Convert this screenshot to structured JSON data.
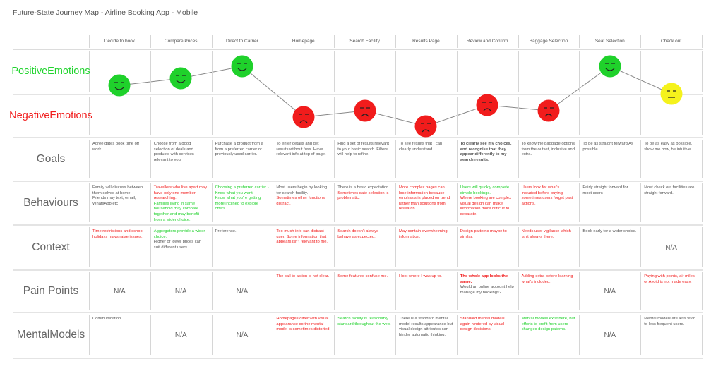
{
  "title": "Future-State Journey Map - Airline Booking App - Mobile",
  "columns": [
    "Decide to book",
    "Compare Prices",
    "Direct to Carrier",
    "Homepage",
    "Search Facility",
    "Results Page",
    "Review and Confirm",
    "Baggage Selection",
    "Seat Selection",
    "Check out"
  ],
  "emotion_rows": {
    "positive_label": [
      "Positive",
      "Emotions"
    ],
    "negative_label": [
      "Negative",
      "Emotions"
    ]
  },
  "emotions": [
    {
      "stage": "Decide to book",
      "sentiment": "positive",
      "face": "smile",
      "color": "#1fd12b",
      "level": 0.7
    },
    {
      "stage": "Compare Prices",
      "sentiment": "positive",
      "face": "smile",
      "color": "#1fd12b",
      "level": 0.8
    },
    {
      "stage": "Direct to Carrier",
      "sentiment": "positive",
      "face": "smile",
      "color": "#1fd12b",
      "level": 1.0
    },
    {
      "stage": "Homepage",
      "sentiment": "negative",
      "face": "frown",
      "color": "#f11c1c",
      "level": -0.65
    },
    {
      "stage": "Search Facility",
      "sentiment": "negative",
      "face": "frown",
      "color": "#f11c1c",
      "level": -0.45
    },
    {
      "stage": "Results Page",
      "sentiment": "negative",
      "face": "frown",
      "color": "#f11c1c",
      "level": -0.8
    },
    {
      "stage": "Review and Confirm",
      "sentiment": "negative",
      "face": "frown",
      "color": "#f11c1c",
      "level": -0.3
    },
    {
      "stage": "Baggage Selection",
      "sentiment": "negative",
      "face": "frown",
      "color": "#f11c1c",
      "level": -0.45
    },
    {
      "stage": "Seat Selection",
      "sentiment": "positive",
      "face": "smile",
      "color": "#1fd12b",
      "level": 1.0
    },
    {
      "stage": "Check out",
      "sentiment": "neutral",
      "face": "neutral",
      "color": "#f5f21c",
      "level": 0.0
    }
  ],
  "rows": [
    {
      "label": "Goals",
      "cells": [
        [
          {
            "t": "Agree dates book time off work",
            "c": "grey"
          }
        ],
        [
          {
            "t": "Choose from a good selection of deals and products with services relevant to you.",
            "c": "grey"
          }
        ],
        [
          {
            "t": "Purchase a product from a from a preferred carrier or previously used carrier.",
            "c": "grey"
          }
        ],
        [
          {
            "t": "To enter details and get results without fuss.  Have relevant info at top of page.",
            "c": "grey"
          }
        ],
        [
          {
            "t": "Find a set of results relevant to your basic search.  Filters will help to refine.",
            "c": "grey"
          }
        ],
        [
          {
            "t": "To see results that I can clearly understand.",
            "c": "grey"
          }
        ],
        [
          {
            "t": "To clearly see my choices, and recognise that they appear differently to my search results.",
            "c": "grey bold"
          }
        ],
        [
          {
            "t": "To know the baggage options from the outset, inclusive and extra.",
            "c": "grey"
          }
        ],
        [
          {
            "t": "To be as straight forward As possible.",
            "c": "grey"
          }
        ],
        [
          {
            "t": "To be as easy as possible, show me how, be intuitive.",
            "c": "grey"
          }
        ]
      ]
    },
    {
      "label": "Behaviours",
      "cells": [
        [
          {
            "t": "Family will discuss between them selves at home.",
            "c": "grey"
          },
          {
            "t": "Friends may text, email, WhatsApp etc",
            "c": "grey"
          }
        ],
        [
          {
            "t": "Travellers who live apart may have only one member researching.",
            "c": "red"
          },
          {
            "t": "Families living in same household may compare together and may benefit from a wider choice.",
            "c": "green"
          }
        ],
        [
          {
            "t": "Choosing a preferred carrier -",
            "c": "green"
          },
          {
            "t": "Know what you want",
            "c": "green"
          },
          {
            "t": "Know what you're getting more inclined to explore offers.",
            "c": "green"
          }
        ],
        [
          {
            "t": "Most users begin by looking for search facility.",
            "c": "grey"
          },
          {
            "t": "Sometimes other functions distract.",
            "c": "red"
          }
        ],
        [
          {
            "t": "There is a basic expectation.",
            "c": "grey"
          },
          {
            "t": "Sometimes date selection is problematic.",
            "c": "red"
          }
        ],
        [
          {
            "t": "More complex pages can lose information because emphasis is placed on trend rather than solutions from research.",
            "c": "red"
          }
        ],
        [
          {
            "t": "Users will quickly complete simple bookings.",
            "c": "green"
          },
          {
            "t": "Where booking are complex visual design can make information more difficult to separate.",
            "c": "red"
          }
        ],
        [
          {
            "t": "Users look for what's included before buying, sometimes users forget past actions.",
            "c": "red"
          }
        ],
        [
          {
            "t": "Fairly straight forward for most users",
            "c": "grey"
          }
        ],
        [
          {
            "t": "Most check out facilities are straight forward.",
            "c": "grey"
          }
        ]
      ]
    },
    {
      "label": "Context",
      "cells": [
        [
          {
            "t": "Time restrictions and school holidays mays raise issues.",
            "c": "red"
          }
        ],
        [
          {
            "t": "Aggregators provide a wider choice.",
            "c": "green"
          },
          {
            "t": "Higher or lower prices can suit different users.",
            "c": "grey"
          }
        ],
        [
          {
            "t": "Preference.",
            "c": "grey"
          }
        ],
        [
          {
            "t": "Too much info can distract user.  Some information that appears isn't relevant to me.",
            "c": "red"
          }
        ],
        [
          {
            "t": "Search doesn't always behave as expected.",
            "c": "red"
          }
        ],
        [
          {
            "t": "May contain overwhelming information.",
            "c": "red"
          }
        ],
        [
          {
            "t": "Design patterns maybe to similar.",
            "c": "red"
          }
        ],
        [
          {
            "t": "Needs user vigilance which isn't always there.",
            "c": "red"
          }
        ],
        [
          {
            "t": "Book early for a wider choice.",
            "c": "grey"
          }
        ],
        "N/A"
      ]
    },
    {
      "label": "Pain Points",
      "cells": [
        "N/A",
        "N/A",
        "N/A",
        [
          {
            "t": "The call to action is not clear.",
            "c": "red"
          }
        ],
        [
          {
            "t": "Some features confuse me.",
            "c": "red"
          }
        ],
        [
          {
            "t": "I lost where I was up to.",
            "c": "red"
          }
        ],
        [
          {
            "t": "The whole app looks the same.",
            "c": "red bold"
          },
          {
            "t": "Would an online account help manage my bookings?",
            "c": "grey"
          }
        ],
        [
          {
            "t": "Adding extra before learning what's included.",
            "c": "red"
          }
        ],
        "N/A",
        [
          {
            "t": "Paying with points, air miles or Avoid  is not made easy.",
            "c": "red"
          }
        ]
      ]
    },
    {
      "label": "Mental Models",
      "label_lines": [
        "Mental",
        "Models"
      ],
      "cells": [
        [
          {
            "t": "Communication",
            "c": "grey"
          }
        ],
        "N/A",
        "N/A",
        [
          {
            "t": "Homepages differ with visual appearance so the mental model is sometimes distorted.",
            "c": "red"
          }
        ],
        [
          {
            "t": "Search facility is reasonably standard throughout the web.",
            "c": "green"
          }
        ],
        [
          {
            "t": "There is a standard mental model results appearance but visual design attributes can hinder automatic thinking.",
            "c": "grey"
          }
        ],
        [
          {
            "t": "Standard mental models again hindered by visual design decisions.",
            "c": "red"
          }
        ],
        [
          {
            "t": "Mental models exist here, but efforts to profit from users  changes design paterns.",
            "c": "green"
          }
        ],
        "N/A",
        [
          {
            "t": "Mental models are less vivid to less frequent users.",
            "c": "grey"
          }
        ]
      ]
    }
  ],
  "colors": {
    "positive": "#1fd12b",
    "negative": "#f11c1c",
    "neutral": "#f5f21c",
    "grid": "#dcdcdc",
    "text": "#555555"
  }
}
